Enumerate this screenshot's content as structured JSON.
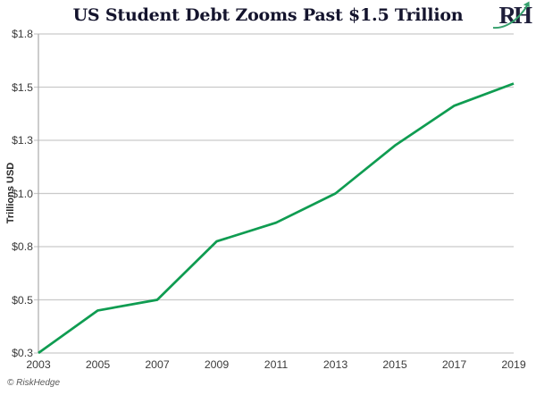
{
  "header": {
    "title": "US Student Debt Zooms Past $1.5 Trillion",
    "logo_text": "RH"
  },
  "chart_data": {
    "type": "line",
    "title": "US Student Debt Zooms Past $1.5 Trillion",
    "xlabel": "",
    "ylabel": "Trillions USD",
    "categories": [
      "2003",
      "2005",
      "2007",
      "2009",
      "2011",
      "2013",
      "2015",
      "2017",
      "2019"
    ],
    "values": [
      0.3,
      0.46,
      0.5,
      0.82,
      0.89,
      1.0,
      1.27,
      1.43,
      1.52
    ],
    "y_ticks": {
      "labels": [
        "$0.3",
        "$0.5",
        "$0.8",
        "$1.0",
        "$1.3",
        "$1.5",
        "$1.8"
      ],
      "values": [
        0.3,
        0.5,
        0.8,
        1.0,
        1.3,
        1.5,
        1.8
      ]
    },
    "ylim": [
      0.3,
      1.8
    ],
    "grid": true,
    "legend": false
  },
  "colors": {
    "line": "#0f9c51",
    "gridline": "#c9c9c9",
    "axis": "#ababab",
    "title": "#14142d",
    "tick_label": "#3a3a3a",
    "axis_title": "#262626",
    "attribution": "#595959",
    "logo": "#1e1e3a",
    "logo_swoosh": "#36a06d"
  },
  "footer": {
    "attribution": "© RiskHedge"
  }
}
